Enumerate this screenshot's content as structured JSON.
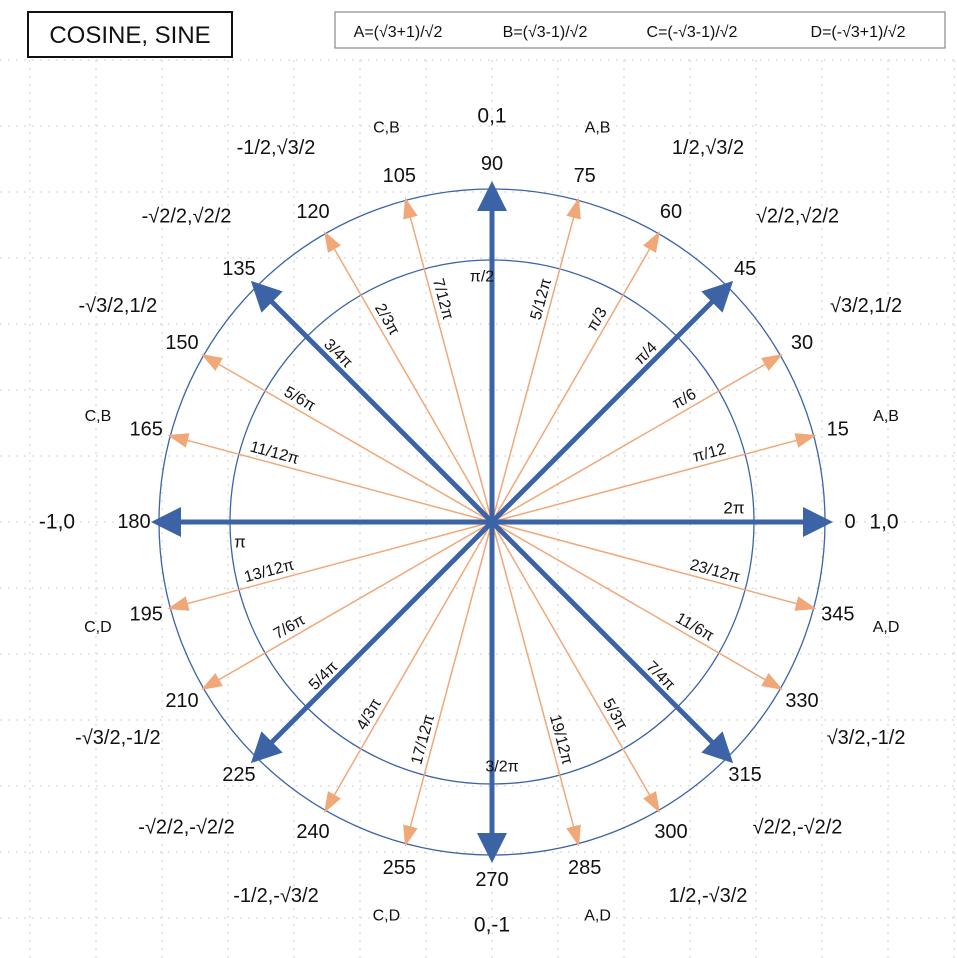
{
  "title": "COSINE, SINE",
  "legend": [
    "A=(√3+1)/√2",
    "B=(√3-1)/√2",
    "C=(-√3-1)/√2",
    "D=(-√3+1)/√2"
  ],
  "colors": {
    "major_arrow": "#3b63a6",
    "minor_arrow": "#f0a878",
    "circle": "#3b63a6",
    "text": "#111111",
    "grid": "#cfcfcf"
  },
  "angles": [
    {
      "deg": "0",
      "rad": "2π",
      "coord": "1,0",
      "pair": "",
      "major": true
    },
    {
      "deg": "15",
      "rad": "π/12",
      "coord": "",
      "pair": "A,B",
      "major": false
    },
    {
      "deg": "30",
      "rad": "π/6",
      "coord": "√3/2,1/2",
      "pair": "",
      "major": false
    },
    {
      "deg": "45",
      "rad": "π/4",
      "coord": "√2/2,√2/2",
      "pair": "",
      "major": true
    },
    {
      "deg": "60",
      "rad": "π/3",
      "coord": "1/2,√3/2",
      "pair": "",
      "major": false
    },
    {
      "deg": "75",
      "rad": "5/12π",
      "coord": "",
      "pair": "A,B",
      "major": false
    },
    {
      "deg": "90",
      "rad": "π/2",
      "coord": "0,1",
      "pair": "",
      "major": true
    },
    {
      "deg": "105",
      "rad": "7/12π",
      "coord": "",
      "pair": "C,B",
      "major": false
    },
    {
      "deg": "120",
      "rad": "2/3π",
      "coord": "-1/2,√3/2",
      "pair": "",
      "major": false
    },
    {
      "deg": "135",
      "rad": "3/4π",
      "coord": "-√2/2,√2/2",
      "pair": "",
      "major": true
    },
    {
      "deg": "150",
      "rad": "5/6π",
      "coord": "-√3/2,1/2",
      "pair": "",
      "major": false
    },
    {
      "deg": "165",
      "rad": "11/12π",
      "coord": "",
      "pair": "C,B",
      "major": false
    },
    {
      "deg": "180",
      "rad": "π",
      "coord": "-1,0",
      "pair": "",
      "major": true
    },
    {
      "deg": "195",
      "rad": "13/12π",
      "coord": "",
      "pair": "C,D",
      "major": false
    },
    {
      "deg": "210",
      "rad": "7/6π",
      "coord": "-√3/2,-1/2",
      "pair": "",
      "major": false
    },
    {
      "deg": "225",
      "rad": "5/4π",
      "coord": "-√2/2,-√2/2",
      "pair": "",
      "major": true
    },
    {
      "deg": "240",
      "rad": "4/3π",
      "coord": "-1/2,-√3/2",
      "pair": "",
      "major": false
    },
    {
      "deg": "255",
      "rad": "17/12π",
      "coord": "",
      "pair": "C,D",
      "major": false
    },
    {
      "deg": "270",
      "rad": "3/2π",
      "coord": "0,-1",
      "pair": "",
      "major": true
    },
    {
      "deg": "285",
      "rad": "19/12π",
      "coord": "",
      "pair": "A,D",
      "major": false
    },
    {
      "deg": "300",
      "rad": "5/3π",
      "coord": "1/2,-√3/2",
      "pair": "",
      "major": false
    },
    {
      "deg": "315",
      "rad": "7/4π",
      "coord": "√2/2,-√2/2",
      "pair": "",
      "major": true
    },
    {
      "deg": "330",
      "rad": "11/6π",
      "coord": "√3/2,-1/2",
      "pair": "",
      "major": false
    },
    {
      "deg": "345",
      "rad": "23/12π",
      "coord": "",
      "pair": "A,D",
      "major": false
    }
  ]
}
